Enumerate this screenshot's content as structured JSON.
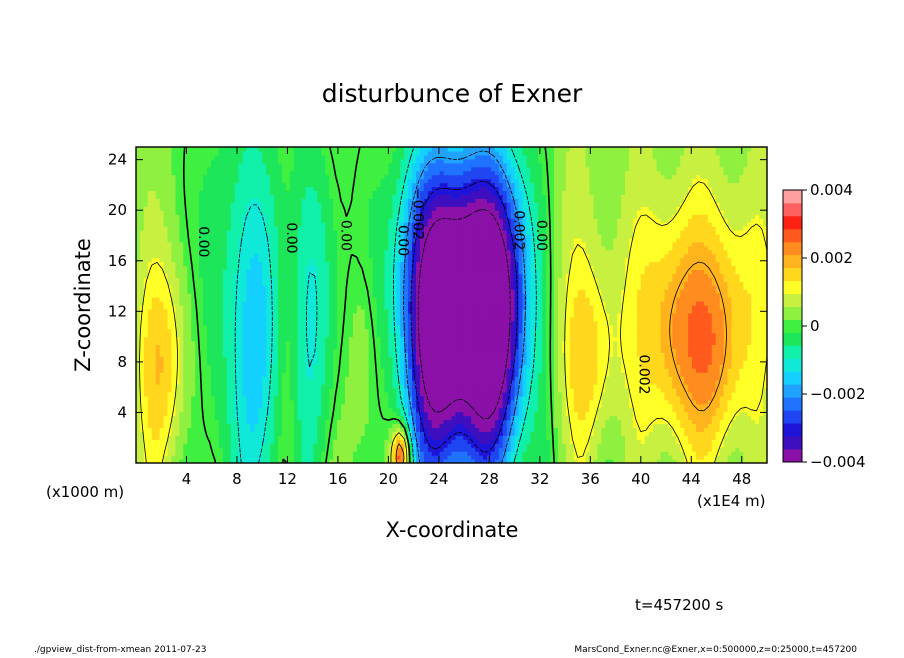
{
  "chart_data": {
    "type": "heatmap",
    "title": "disturbunce of Exner",
    "xlabel": "X-coordinate",
    "ylabel": "Z-coordinate",
    "x_unit_left": "(x1000 m)",
    "x_unit_right": "(x1E4 m)",
    "xlim": [
      0,
      50
    ],
    "ylim": [
      0,
      25
    ],
    "xticks": [
      4,
      8,
      12,
      16,
      20,
      24,
      28,
      32,
      36,
      40,
      44,
      48
    ],
    "yticks": [
      4,
      8,
      12,
      16,
      20,
      24
    ],
    "colorbar": {
      "range": [
        -0.004,
        0.004
      ],
      "tick_values": [
        0.004,
        0.002,
        0,
        -0.002,
        -0.004
      ],
      "tick_labels": [
        "0.004",
        "0.002",
        "0",
        "−0.002",
        "−0.004"
      ],
      "colors": [
        "#8a10a8",
        "#3d0fbf",
        "#1e14d8",
        "#1f46f0",
        "#1f73ff",
        "#1fa3ff",
        "#13d0ff",
        "#10e8d8",
        "#10f0a8",
        "#1ee65a",
        "#40f040",
        "#8ff040",
        "#c8f040",
        "#ffff28",
        "#ffd81e",
        "#ffb41e",
        "#ff8c1e",
        "#ff5a1e",
        "#ff2014",
        "#ff6060",
        "#ffa0a0"
      ]
    },
    "contour_labels": [
      {
        "x": 5.3,
        "y": 17.5,
        "text": "0.00"
      },
      {
        "x": 12.3,
        "y": 17.8,
        "text": "0.00"
      },
      {
        "x": 16.6,
        "y": 18.0,
        "text": "0.00"
      },
      {
        "x": 21.1,
        "y": 17.6,
        "text": "0.00"
      },
      {
        "x": 22.3,
        "y": 19.7,
        "text": "−0.002"
      },
      {
        "x": 30.3,
        "y": 18.4,
        "text": "0.002"
      },
      {
        "x": 32.1,
        "y": 18.0,
        "text": "0.00"
      },
      {
        "x": 40.2,
        "y": 7.0,
        "text": "0.002"
      }
    ],
    "features": [
      {
        "x": 24.0,
        "z": 9.0,
        "value": -0.004
      },
      {
        "x": 28.6,
        "z": 9.5,
        "value": -0.0035
      },
      {
        "x": 26.2,
        "z": 14.0,
        "value": -0.003
      },
      {
        "x": 2.3,
        "z": 8.0,
        "value": 0.0015
      },
      {
        "x": 36.0,
        "z": 8.0,
        "value": 0.0013
      },
      {
        "x": 42.8,
        "z": 9.0,
        "value": 0.0016
      },
      {
        "x": 46.3,
        "z": 8.5,
        "value": 0.0016
      },
      {
        "x": 21.0,
        "z": 1.2,
        "value": 0.0035
      },
      {
        "x": 10.0,
        "z": 10.0,
        "value": -0.0015
      },
      {
        "x": 14.5,
        "z": 12.0,
        "value": -0.001
      }
    ]
  },
  "annotations": {
    "time_label": "t=457200 s",
    "footer_left": "./gpview_dist-from-xmean  2011-07-23",
    "footer_right": "MarsCond_Exner.nc@Exner,x=0:500000,z=0:25000,t=457200"
  }
}
